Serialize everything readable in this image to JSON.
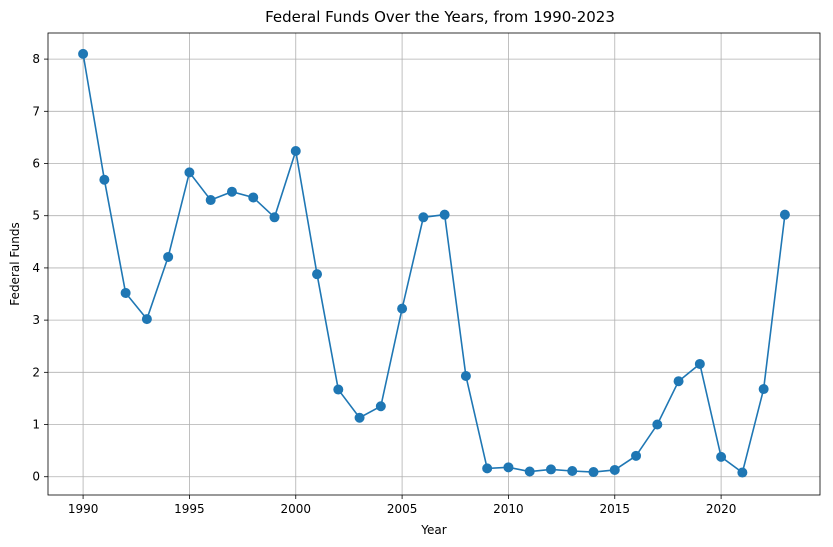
{
  "chart_data": {
    "type": "line",
    "title": "Federal Funds Over the Years, from 1990-2023",
    "xlabel": "Year",
    "ylabel": "Federal Funds",
    "xlim": [
      1988.35,
      2024.65
    ],
    "ylim": [
      -0.35,
      8.5
    ],
    "xticks": [
      1990,
      1995,
      2000,
      2005,
      2010,
      2015,
      2020
    ],
    "yticks": [
      0,
      1,
      2,
      3,
      4,
      5,
      6,
      7,
      8
    ],
    "grid": true,
    "line_color": "#1f77b4",
    "marker": "circle",
    "x": [
      1990,
      1991,
      1992,
      1993,
      1994,
      1995,
      1996,
      1997,
      1998,
      1999,
      2000,
      2001,
      2002,
      2003,
      2004,
      2005,
      2006,
      2007,
      2008,
      2009,
      2010,
      2011,
      2012,
      2013,
      2014,
      2015,
      2016,
      2017,
      2018,
      2019,
      2020,
      2021,
      2022,
      2023
    ],
    "y": [
      8.1,
      5.69,
      3.52,
      3.02,
      4.21,
      5.83,
      5.3,
      5.46,
      5.35,
      4.97,
      6.24,
      3.88,
      1.67,
      1.13,
      1.35,
      3.22,
      4.97,
      5.02,
      1.93,
      0.16,
      0.18,
      0.1,
      0.14,
      0.11,
      0.09,
      0.13,
      0.4,
      1.0,
      1.83,
      2.16,
      0.38,
      0.08,
      1.68,
      5.02
    ]
  }
}
